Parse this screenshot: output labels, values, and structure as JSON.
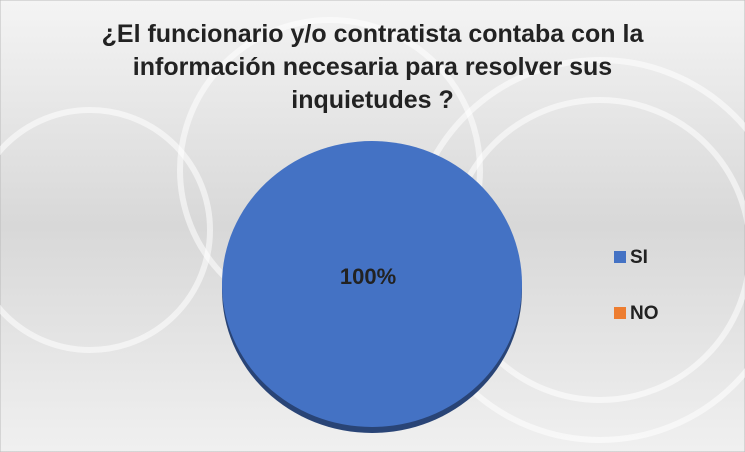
{
  "chart_data": {
    "type": "pie",
    "title": "¿El funcionario y/o contratista contaba con la información necesaria para resolver sus inquietudes ?",
    "categories": [
      "SI",
      "NO"
    ],
    "values": [
      100,
      0
    ],
    "value_labels": [
      "100%",
      null
    ],
    "colors": [
      "#4472c4",
      "#ed7d31"
    ],
    "legend": "right"
  }
}
